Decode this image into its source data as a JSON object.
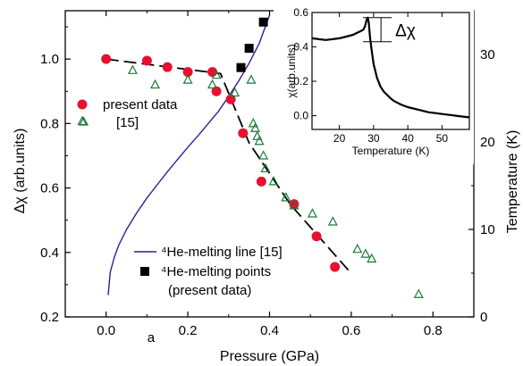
{
  "chart_data": [
    {
      "type": "scatter",
      "xlabel": "Pressure (GPa)",
      "ylabel": "Δχ (arb.units)",
      "y2label": "Temperature (K)",
      "xlim": [
        -0.1,
        0.9
      ],
      "ylim": [
        0.2,
        1.15
      ],
      "y2lim": [
        0,
        35
      ],
      "x_ticks": [
        "0.0",
        "0.2",
        "0.4",
        "0.6",
        "0.8"
      ],
      "x_tick_values": [
        0.0,
        0.2,
        0.4,
        0.6,
        0.8
      ],
      "y_ticks": [
        "0.2",
        "0.4",
        "0.6",
        "0.8",
        "1.0"
      ],
      "y_tick_values": [
        0.2,
        0.4,
        0.6,
        0.8,
        1.0
      ],
      "y2_ticks": [
        "0",
        "10",
        "20",
        "30"
      ],
      "y2_tick_values": [
        0,
        10,
        20,
        30
      ],
      "annotation": "a",
      "series": [
        {
          "name": "present data",
          "marker": "filled-circle",
          "color": "#e8102e",
          "axis": "left",
          "x": [
            0.0,
            0.1,
            0.15,
            0.2,
            0.26,
            0.27,
            0.305,
            0.335,
            0.38,
            0.46,
            0.515,
            0.56
          ],
          "y": [
            1.0,
            0.995,
            0.975,
            0.96,
            0.96,
            0.9,
            0.875,
            0.77,
            0.62,
            0.55,
            0.45,
            0.355
          ]
        },
        {
          "name": "[15]",
          "marker": "open-triangle",
          "color": "#1a7a3a",
          "axis": "left",
          "x": [
            -0.055,
            0.065,
            0.12,
            0.2,
            0.26,
            0.27,
            0.315,
            0.355,
            0.36,
            0.365,
            0.37,
            0.375,
            0.385,
            0.39,
            0.41,
            0.44,
            0.46,
            0.505,
            0.555,
            0.615,
            0.635,
            0.65,
            0.765
          ],
          "y": [
            0.805,
            0.965,
            0.92,
            0.935,
            0.92,
            0.95,
            0.895,
            0.935,
            0.8,
            0.785,
            0.76,
            0.745,
            0.7,
            0.66,
            0.62,
            0.57,
            0.545,
            0.52,
            0.495,
            0.41,
            0.395,
            0.38,
            0.27
          ]
        },
        {
          "name": "⁴He-melting line [15]",
          "marker": "line",
          "color": "#3a1a8c",
          "axis": "right",
          "x": [
            0.005,
            0.01,
            0.02,
            0.03,
            0.05,
            0.075,
            0.1,
            0.125,
            0.15,
            0.175,
            0.2,
            0.225,
            0.25,
            0.275,
            0.3,
            0.325,
            0.35,
            0.375,
            0.4
          ],
          "y": [
            2.5,
            5.1,
            6.8,
            8.1,
            10.0,
            11.9,
            13.6,
            15.1,
            16.6,
            18.0,
            19.4,
            20.7,
            22.1,
            23.5,
            25.2,
            27.0,
            29.0,
            31.3,
            34.5
          ]
        },
        {
          "name": "⁴He-melting points\n(present data)",
          "marker": "filled-square",
          "color": "#000000",
          "axis": "right",
          "x": [
            0.33,
            0.35,
            0.385
          ],
          "y": [
            28.5,
            30.7,
            33.7
          ]
        },
        {
          "name": "",
          "marker": "dashed-line",
          "color": "#000000",
          "axis": "left",
          "x": [
            0.0,
            0.28,
            0.35,
            0.45,
            0.6
          ],
          "y": [
            1.0,
            0.955,
            0.74,
            0.55,
            0.335
          ]
        }
      ],
      "legend": [
        {
          "label": "present data",
          "label2": "[15]"
        },
        {
          "label": "⁴He-melting line [15]"
        },
        {
          "label": "⁴He-melting points",
          "label2": "(present data)"
        }
      ]
    },
    {
      "type": "line",
      "xlabel": "Temperature (K)",
      "ylabel": "χ(arb.units)",
      "xlim": [
        12,
        58
      ],
      "ylim": [
        -0.08,
        0.6
      ],
      "x_ticks": [
        "20",
        "30",
        "40",
        "50"
      ],
      "x_tick_values": [
        20,
        30,
        40,
        50
      ],
      "y_ticks": [
        "0.0",
        "0.2",
        "0.4",
        "0.6"
      ],
      "y_tick_values": [
        0.0,
        0.2,
        0.4,
        0.6
      ],
      "annotation": "Δχ",
      "series": [
        {
          "name": "",
          "color": "#000000",
          "x": [
            12,
            14,
            16,
            18,
            20,
            22,
            24,
            25,
            26,
            27,
            27.5,
            28,
            28.3,
            28.6,
            29,
            29.5,
            30,
            31,
            32,
            33,
            34,
            35,
            36,
            38,
            40,
            43,
            46,
            50,
            54,
            58
          ],
          "y": [
            0.45,
            0.445,
            0.44,
            0.445,
            0.45,
            0.46,
            0.47,
            0.48,
            0.49,
            0.5,
            0.52,
            0.56,
            0.57,
            0.54,
            0.45,
            0.37,
            0.3,
            0.22,
            0.17,
            0.14,
            0.12,
            0.1,
            0.085,
            0.065,
            0.05,
            0.035,
            0.02,
            0.01,
            0.0,
            -0.01
          ]
        }
      ]
    }
  ]
}
